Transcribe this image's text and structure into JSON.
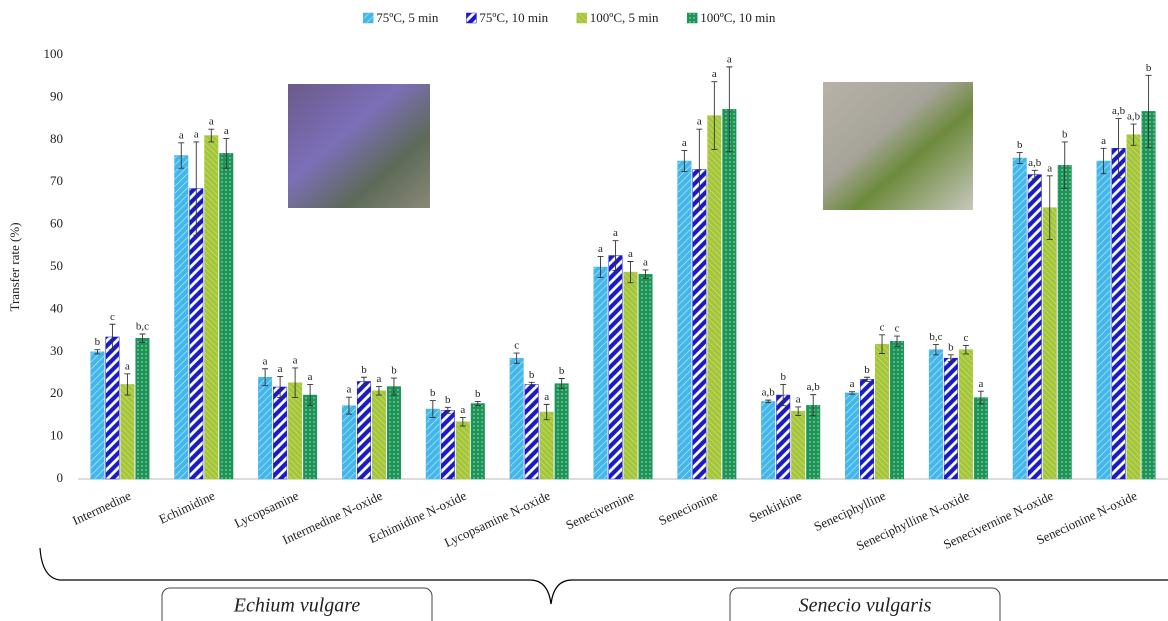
{
  "chart_data": {
    "type": "bar",
    "y_label": "Transfer rate (%)",
    "categories": [
      "Intermedine",
      "Echimidine",
      "Lycopsamine",
      "Intermedine N-oxide",
      "Echimidine N-oxide",
      "Lycopsamine N-oxide",
      "Senecivernine",
      "Senecionine",
      "Senkirkine",
      "Seneciphylline",
      "Seneciphylline N-oxide",
      "Senecivernine N-oxide",
      "Senecionine N-oxide"
    ],
    "groups": [
      "Echium vulgare",
      "Senecio vulgaris"
    ],
    "ylim": [
      0,
      100
    ],
    "yticks": [
      0,
      10,
      20,
      30,
      40,
      50,
      60,
      70,
      80,
      90,
      100
    ],
    "grid": false,
    "legend": "top",
    "series": [
      {
        "name": "75ºC, 5 min",
        "color": "#43b7ea",
        "values": [
          30,
          76.3,
          24,
          17.3,
          16.5,
          28.5,
          50,
          75,
          18.3,
          20.3,
          30.5,
          75.7,
          75
        ],
        "errors": [
          0.5,
          3,
          2,
          2,
          2,
          1.2,
          2.5,
          2.5,
          0.3,
          0.3,
          1.2,
          1.3,
          3
        ],
        "letters": [
          "b",
          "a",
          "a",
          "a",
          "b",
          "c",
          "a",
          "a",
          "a,b",
          "a",
          "b,c",
          "b",
          "a"
        ]
      },
      {
        "name": "75ºC, 10 min",
        "color": "#1b1bc4",
        "values": [
          33.5,
          68.5,
          21.7,
          23,
          16.2,
          22.3,
          52.7,
          73,
          19.8,
          23.5,
          28.5,
          71.8,
          78
        ],
        "errors": [
          3,
          11,
          2.5,
          1,
          0.7,
          0.5,
          3.5,
          9.5,
          2.5,
          0.5,
          0.8,
          1,
          7
        ],
        "letters": [
          "c",
          "a",
          "a",
          "b",
          "b",
          "b",
          "a",
          "a",
          "b",
          "b",
          "b",
          "a,b",
          "a,b"
        ]
      },
      {
        "name": "100ºC, 5 min",
        "color": "#a5c63a",
        "values": [
          22.3,
          81,
          22.7,
          20.8,
          13.5,
          15.8,
          48.8,
          85.7,
          16,
          31.8,
          30.5,
          64,
          81.2
        ],
        "errors": [
          2.5,
          1.5,
          3.5,
          1,
          1,
          1.8,
          2.5,
          8,
          1,
          2.2,
          1,
          7.5,
          2.5
        ],
        "letters": [
          "a",
          "a",
          "a",
          "a",
          "a",
          "a",
          "a",
          "a",
          "a",
          "c",
          "c",
          "a",
          "a,b"
        ]
      },
      {
        "name": "100ºC, 10 min",
        "color": "#1c9456",
        "values": [
          33.2,
          76.8,
          19.8,
          21.8,
          17.8,
          22.5,
          48.3,
          87.2,
          17.4,
          32.5,
          19.2,
          74,
          86.7
        ],
        "errors": [
          1,
          3.5,
          2.5,
          2,
          0.5,
          1.2,
          1,
          10,
          2.5,
          1.2,
          1.5,
          5.5,
          8.5
        ],
        "letters": [
          "b,c",
          "a",
          "a",
          "b",
          "b",
          "b",
          "a",
          "a",
          "a,b",
          "c",
          "a",
          "b",
          "b"
        ]
      }
    ]
  }
}
